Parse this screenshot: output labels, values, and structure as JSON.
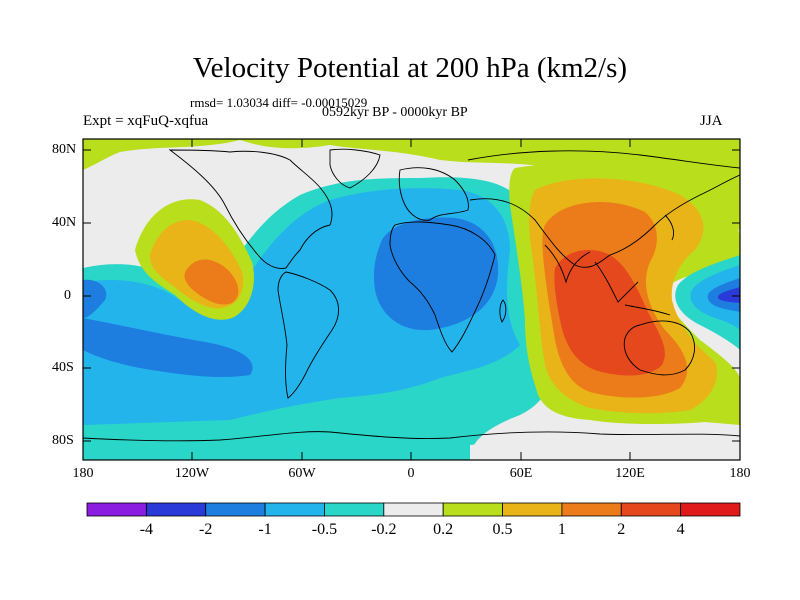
{
  "figure": {
    "title": "Velocity Potential at 200 hPa (km2/s)",
    "stats": "rmsd= 1.03034 diff= -0.00015029",
    "left_label": "Expt = xqFuQ-xqfua",
    "center_label": "0592kyr BP - 0000kyr BP",
    "right_label": "JJA"
  },
  "axes": {
    "y_ticks": [
      "80N",
      "40N",
      "0",
      "40S",
      "80S"
    ],
    "x_ticks": [
      "180",
      "120W",
      "60W",
      "0",
      "60E",
      "120E",
      "180"
    ]
  },
  "colorbar": {
    "labels": [
      "-4",
      "-2",
      "-1",
      "-0.5",
      "-0.2",
      "0.2",
      "0.5",
      "1",
      "2",
      "4"
    ],
    "colors": [
      "#8b1de0",
      "#2a3ad8",
      "#1e7ee0",
      "#23b4ec",
      "#2ad6c8",
      "#ececec",
      "#b9de1c",
      "#e8b418",
      "#ec7c1a",
      "#e4481c",
      "#e01a1a"
    ]
  },
  "chart_data": {
    "type": "heatmap",
    "title": "Velocity Potential at 200 hPa (km2/s)",
    "xlabel": "",
    "ylabel": "",
    "xlim": [
      -180,
      180
    ],
    "ylim": [
      -90,
      90
    ],
    "contour_levels": [
      -4,
      -2,
      -1,
      -0.5,
      -0.2,
      0.2,
      0.5,
      1,
      2,
      4
    ],
    "features": [
      {
        "region": "Asia / Indian Ocean / Maritime Continent",
        "sign": "positive",
        "max_level": "2 to 4"
      },
      {
        "region": "Eastern tropical Pacific near 120W 15N",
        "sign": "positive",
        "max_level": "1 to 2"
      },
      {
        "region": "Atlantic / Africa / Southern Ocean",
        "sign": "negative",
        "max_level": "-1 to -2"
      },
      {
        "region": "Western tropical Pacific near 170E",
        "sign": "negative",
        "max_level": "-2 to -4"
      }
    ]
  }
}
